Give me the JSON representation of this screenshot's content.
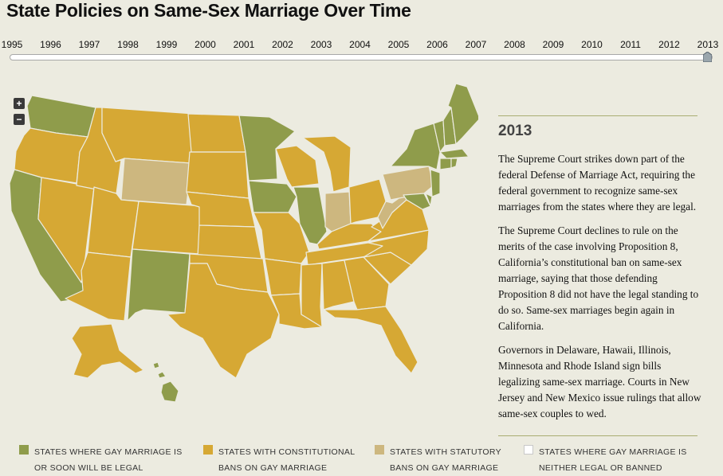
{
  "title": "State Policies on Same-Sex Marriage Over Time",
  "timeline": {
    "years": [
      "1995",
      "1996",
      "1997",
      "1998",
      "1999",
      "2000",
      "2001",
      "2002",
      "2003",
      "2004",
      "2005",
      "2006",
      "2007",
      "2008",
      "2009",
      "2010",
      "2011",
      "2012",
      "2013"
    ],
    "selected": "2013"
  },
  "zoom": {
    "in_label": "+",
    "out_label": "−"
  },
  "info": {
    "year": "2013",
    "paragraphs": [
      "The Supreme Court strikes down part of the federal Defense of Marriage Act, requiring the federal government to recognize same-sex marriages from the states where they are legal.",
      "The Supreme Court declines to rule on the merits of the case involving Proposition 8, California’s constitutional ban on same-sex marriage, saying that those defending Proposition 8 did not have the legal standing to do so. Same-sex marriages begin again in California.",
      "Governors in Delaware, Hawaii, Illinois, Minnesota and Rhode Island sign bills legalizing same-sex marriage. Courts in New Jersey and New Mexico issue rulings that allow same-sex couples to wed."
    ]
  },
  "colors": {
    "legal": "#8f9c4b",
    "constitutional": "#d6a834",
    "statutory": "#cdb77f",
    "neither": "#ffffff"
  },
  "legend": [
    {
      "key": "legal",
      "line1": "STATES WHERE GAY MARRIAGE IS",
      "line2": "OR SOON WILL BE LEGAL"
    },
    {
      "key": "constitutional",
      "line1": "STATES WITH CONSTITUTIONAL",
      "line2": "BANS ON GAY MARRIAGE"
    },
    {
      "key": "statutory",
      "line1": "STATES WITH STATUTORY",
      "line2": "BANS ON GAY MARRIAGE"
    },
    {
      "key": "neither",
      "line1": "STATES WHERE GAY MARRIAGE IS",
      "line2": "NEITHER LEGAL OR BANNED"
    }
  ],
  "states": {
    "WA": "legal",
    "OR": "constitutional",
    "CA": "legal",
    "NV": "constitutional",
    "ID": "constitutional",
    "MT": "constitutional",
    "WY": "statutory",
    "UT": "constitutional",
    "AZ": "constitutional",
    "CO": "constitutional",
    "NM": "legal",
    "ND": "constitutional",
    "SD": "constitutional",
    "NE": "constitutional",
    "KS": "constitutional",
    "OK": "constitutional",
    "TX": "constitutional",
    "MN": "legal",
    "IA": "legal",
    "MO": "constitutional",
    "AR": "constitutional",
    "LA": "constitutional",
    "WI": "constitutional",
    "IL": "legal",
    "MI": "constitutional",
    "IN": "statutory",
    "OH": "constitutional",
    "KY": "constitutional",
    "TN": "constitutional",
    "MS": "constitutional",
    "AL": "constitutional",
    "GA": "constitutional",
    "FL": "constitutional",
    "SC": "constitutional",
    "NC": "constitutional",
    "VA": "constitutional",
    "WV": "statutory",
    "PA": "statutory",
    "NY": "legal",
    "VT": "legal",
    "NH": "legal",
    "ME": "legal",
    "MA": "legal",
    "RI": "legal",
    "CT": "legal",
    "NJ": "legal",
    "DE": "legal",
    "MD": "legal",
    "AK": "constitutional",
    "HI": "legal"
  }
}
